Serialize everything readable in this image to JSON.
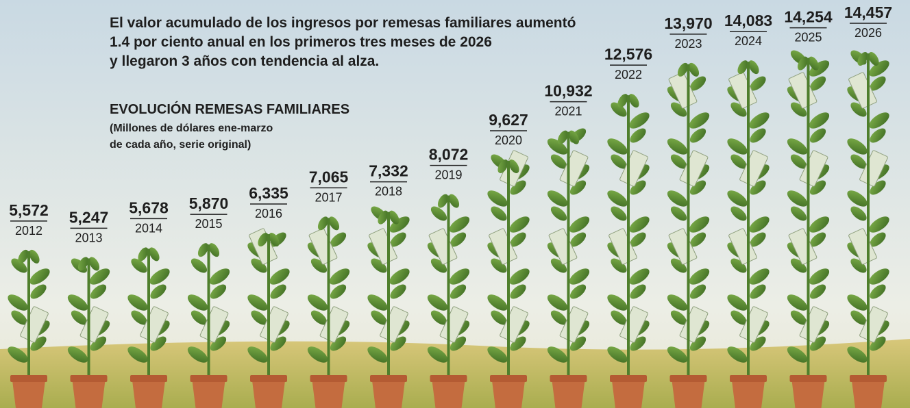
{
  "chart_data": {
    "type": "bar",
    "subtitle": [
      "El valor acumulado de los ingresos por remesas familiares aumentó",
      "1.4 por ciento anual en los primeros tres meses de 2026",
      "y llegaron 3 años con tendencia al alza."
    ],
    "heading": "EVOLUCIÓN REMESAS FAMILIARES",
    "unit_note": [
      "(Millones de dólares ene-marzo",
      "de cada año, serie original)"
    ],
    "categories": [
      "2012",
      "2013",
      "2014",
      "2015",
      "2016",
      "2017",
      "2018",
      "2019",
      "2020",
      "2021",
      "2022",
      "2023",
      "2024",
      "2025",
      "2026"
    ],
    "values": [
      5572,
      5247,
      5678,
      5870,
      6335,
      7065,
      7332,
      8072,
      9627,
      10932,
      12576,
      13970,
      14083,
      14254,
      14457
    ],
    "value_labels": [
      "5,572",
      "5,247",
      "5,678",
      "5,870",
      "6,335",
      "7,065",
      "7,332",
      "8,072",
      "9,627",
      "10,932",
      "12,576",
      "13,970",
      "14,083",
      "14,254",
      "14,457"
    ],
    "color": "#4f7f2c"
  }
}
